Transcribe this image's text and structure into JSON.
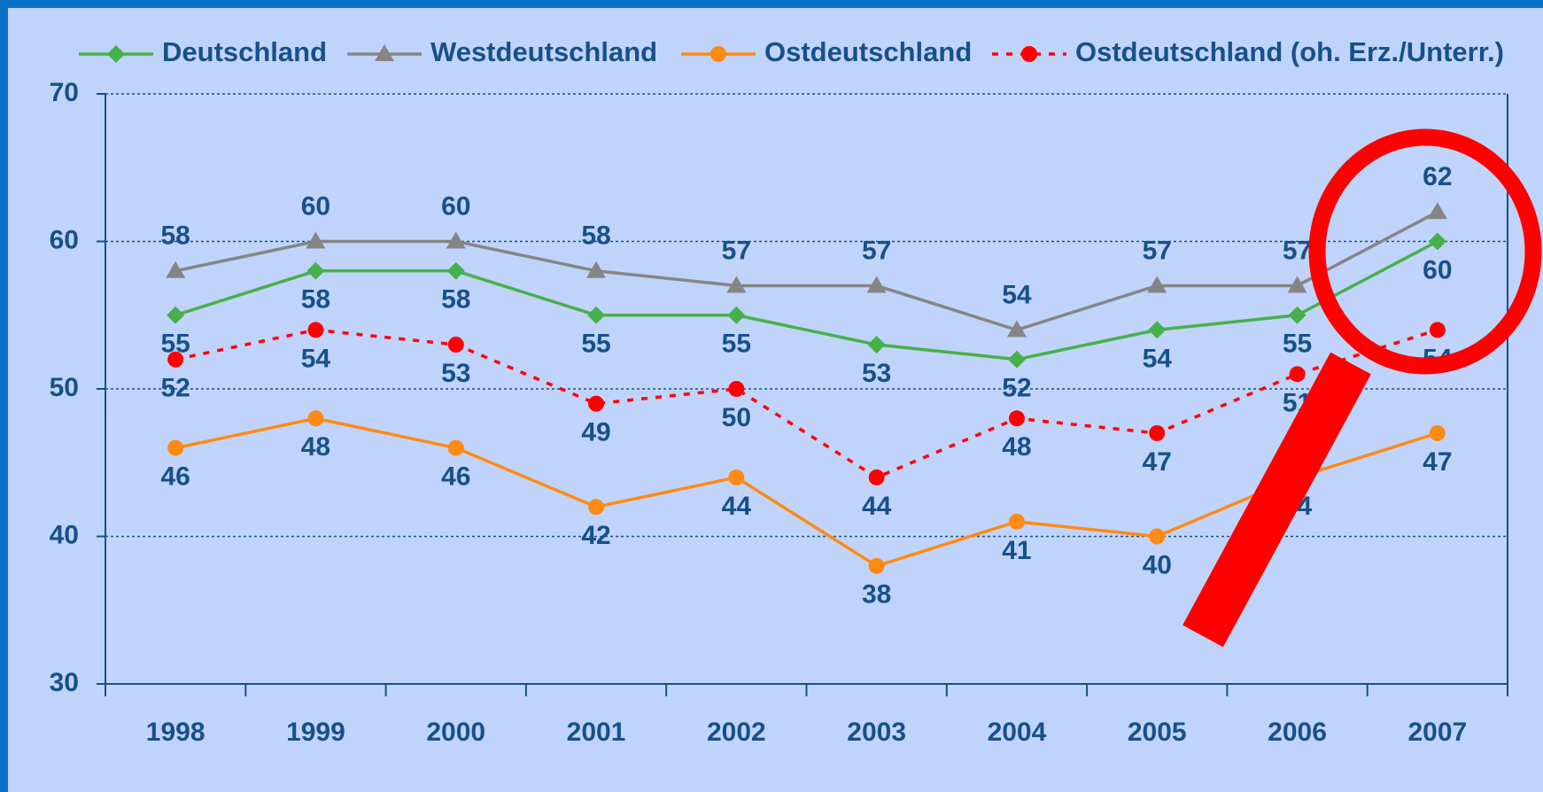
{
  "chart_data": {
    "type": "line",
    "categories": [
      "1998",
      "1999",
      "2000",
      "2001",
      "2002",
      "2003",
      "2004",
      "2005",
      "2006",
      "2007"
    ],
    "series": [
      {
        "name": "Deutschland",
        "color": "#46b04a",
        "marker": "diamond",
        "dashed": false,
        "values": [
          55,
          58,
          58,
          55,
          55,
          53,
          52,
          54,
          55,
          60
        ]
      },
      {
        "name": "Westdeutschland",
        "color": "#858585",
        "marker": "triangle",
        "dashed": false,
        "values": [
          58,
          60,
          60,
          58,
          57,
          57,
          54,
          57,
          57,
          62
        ]
      },
      {
        "name": "Ostdeutschland",
        "color": "#ff8a14",
        "marker": "circle",
        "dashed": false,
        "values": [
          46,
          48,
          46,
          42,
          44,
          38,
          41,
          40,
          44,
          47
        ]
      },
      {
        "name": "Ostdeutschland (oh. Erz./Unterr.)",
        "color": "#ff0000",
        "marker": "circle",
        "dashed": true,
        "values": [
          52,
          54,
          53,
          49,
          50,
          44,
          48,
          47,
          51,
          54
        ]
      }
    ],
    "ylim": [
      30,
      70
    ],
    "yticks": [
      30,
      40,
      50,
      60,
      70
    ],
    "grid": true,
    "legend": "top"
  }
}
